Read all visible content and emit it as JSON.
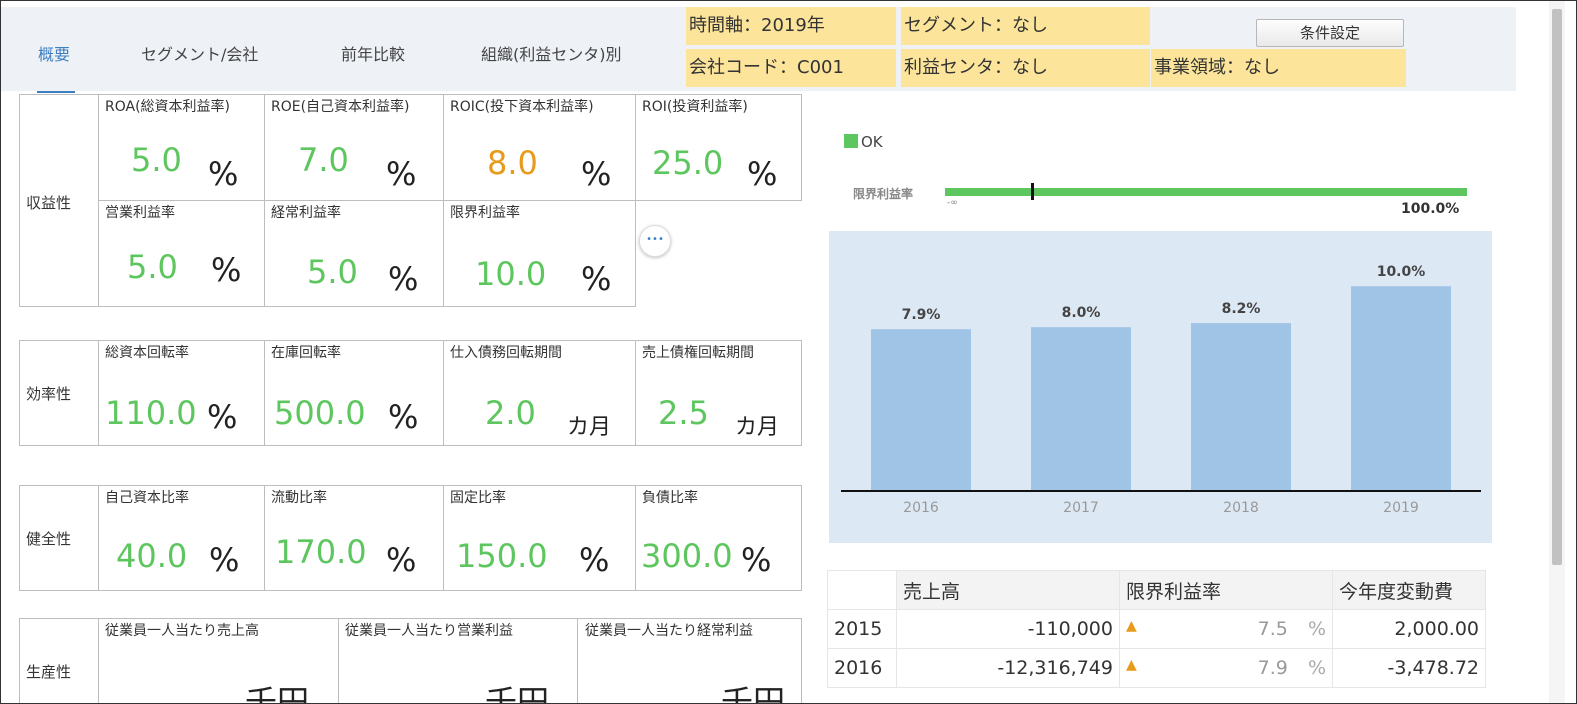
{
  "tabs": [
    "概要",
    "セグメント/会社",
    "前年比較",
    "組織(利益センタ)別"
  ],
  "filters": {
    "time_axis": "時間軸：2019年",
    "segment": "セグメント：なし",
    "company_code": "会社コード：C001",
    "profit_center": "利益センタ：なし",
    "business_area": "事業領域：なし",
    "settings_button": "条件設定"
  },
  "sections": {
    "profitability": {
      "name": "収益性",
      "row1": [
        {
          "label": "ROA(総資本利益率)",
          "value": "5.0",
          "unit": "%"
        },
        {
          "label": "ROE(自己資本利益率)",
          "value": "7.0",
          "unit": "%"
        },
        {
          "label": "ROIC(投下資本利益率)",
          "value": "8.0",
          "unit": "%"
        },
        {
          "label": "ROI(投資利益率)",
          "value": "25.0",
          "unit": "%"
        }
      ],
      "row2": [
        {
          "label": "営業利益率",
          "value": "5.0",
          "unit": "%"
        },
        {
          "label": "経常利益率",
          "value": "5.0",
          "unit": "%"
        },
        {
          "label": "限界利益率",
          "value": "10.0",
          "unit": "%"
        }
      ]
    },
    "efficiency": {
      "name": "効率性",
      "items": [
        {
          "label": "総資本回転率",
          "value": "110.0",
          "unit": "%"
        },
        {
          "label": "在庫回転率",
          "value": "500.0",
          "unit": "%"
        },
        {
          "label": "仕入債務回転期間",
          "value": "2.0",
          "unit": "カ月"
        },
        {
          "label": "売上債権回転期間",
          "value": "2.5",
          "unit": "カ月"
        }
      ]
    },
    "soundness": {
      "name": "健全性",
      "items": [
        {
          "label": "自己資本比率",
          "value": "40.0",
          "unit": "%"
        },
        {
          "label": "流動比率",
          "value": "170.0",
          "unit": "%"
        },
        {
          "label": "固定比率",
          "value": "150.0",
          "unit": "%"
        },
        {
          "label": "負債比率",
          "value": "300.0",
          "unit": "%"
        }
      ]
    },
    "productivity": {
      "name": "生産性",
      "items": [
        {
          "label": "従業員一人当たり売上高",
          "unit": "千円"
        },
        {
          "label": "従業員一人当たり営業利益",
          "unit": "千円"
        },
        {
          "label": "従業員一人当たり経常利益",
          "unit": "千円"
        }
      ]
    }
  },
  "more_button": "•••",
  "legend": "OK",
  "bullet": {
    "label": "限界利益率",
    "min_label": "-∞",
    "max_label": "100.0%",
    "fill_fraction": 1.0,
    "marker_fraction": 0.165
  },
  "chart_data": {
    "type": "bar",
    "categories": [
      "2016",
      "2017",
      "2018",
      "2019"
    ],
    "values": [
      7.9,
      8.0,
      8.2,
      10.0
    ],
    "data_labels": [
      "7.9%",
      "8.0%",
      "8.2%",
      "10.0%"
    ],
    "ylim": [
      0,
      10.5
    ],
    "color": "#a0c4e6"
  },
  "table": {
    "headers": [
      "",
      "売上高",
      "限界利益率",
      "",
      "今年度変動費"
    ],
    "rows": [
      {
        "year": "2015",
        "sales": "-110,000",
        "rate": "7.5",
        "pct": "%",
        "cost": "2,000.00"
      },
      {
        "year": "2016",
        "sales": "-12,316,749",
        "rate": "7.9",
        "pct": "%",
        "cost": "-3,478.72"
      }
    ]
  },
  "colors": {
    "green": "#5ec65e",
    "orange": "#e89a1a",
    "accent": "#3d7fc1",
    "filter_bg": "#fce59b"
  }
}
